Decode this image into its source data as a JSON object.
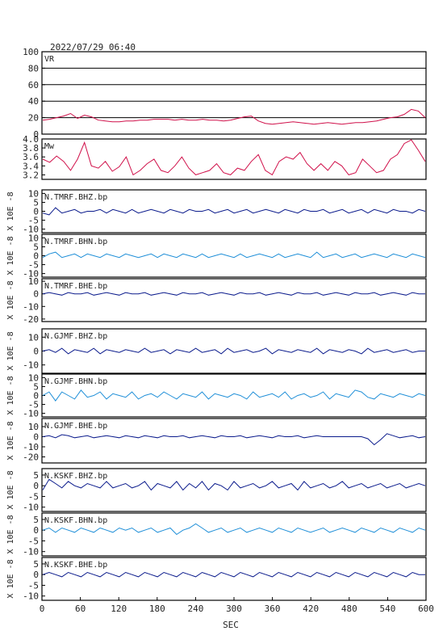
{
  "header": {
    "datetime": "2022/07/29  06:40"
  },
  "colors": {
    "frame": "#000000",
    "vr": "#d0104a",
    "mw": "#d0104a",
    "dark": "#0b1b8c",
    "light": "#1f8fd8"
  },
  "chart_data": [
    {
      "type": "line",
      "title": "VR",
      "ylim": [
        0,
        100
      ],
      "yticks": [
        "0",
        "20",
        "40",
        "60",
        "80",
        "100"
      ],
      "gridlines": [
        20,
        40,
        60,
        80
      ],
      "series": [
        {
          "values": [
            17,
            18,
            20,
            22,
            25,
            19,
            23,
            21,
            17,
            16,
            15,
            15,
            16,
            16,
            17,
            17,
            18,
            18,
            18,
            17,
            18,
            17,
            17,
            18,
            17,
            17,
            16,
            17,
            19,
            21,
            22,
            16,
            13,
            12,
            13,
            14,
            15,
            14,
            13,
            12,
            13,
            14,
            13,
            12,
            13,
            14,
            14,
            15,
            16,
            18,
            20,
            21,
            24,
            30,
            28,
            20
          ]
        }
      ]
    },
    {
      "type": "line",
      "title": "Mw",
      "ylim": [
        3.1,
        4.0
      ],
      "yticks": [
        "3.2",
        "3.4",
        "3.6",
        "3.8",
        "4.0"
      ],
      "gridlines": [],
      "series": [
        {
          "values": [
            3.55,
            3.48,
            3.62,
            3.5,
            3.3,
            3.55,
            3.92,
            3.4,
            3.35,
            3.5,
            3.28,
            3.38,
            3.6,
            3.2,
            3.3,
            3.45,
            3.55,
            3.3,
            3.25,
            3.4,
            3.6,
            3.35,
            3.2,
            3.25,
            3.3,
            3.45,
            3.25,
            3.2,
            3.35,
            3.3,
            3.5,
            3.65,
            3.3,
            3.2,
            3.5,
            3.6,
            3.55,
            3.7,
            3.45,
            3.3,
            3.45,
            3.3,
            3.5,
            3.4,
            3.2,
            3.25,
            3.55,
            3.4,
            3.25,
            3.3,
            3.55,
            3.65,
            3.9,
            3.98,
            3.75,
            3.5
          ]
        }
      ]
    },
    {
      "type": "line",
      "title": "N.TMRF.BHZ.bp",
      "ylabel": "X 10E -8",
      "ylim": [
        -12,
        12
      ],
      "yticks": [
        "-10",
        "-5",
        "0",
        "5",
        "10"
      ],
      "color": "dark",
      "series": [
        {
          "values": [
            -1,
            -2,
            2,
            -1,
            0,
            1,
            -1,
            0,
            0,
            1,
            -1,
            1,
            0,
            -1,
            1,
            -1,
            0,
            1,
            0,
            -1,
            1,
            0,
            -1,
            1,
            0,
            0,
            1,
            -1,
            0,
            1,
            -1,
            0,
            1,
            -1,
            0,
            1,
            0,
            -1,
            1,
            0,
            -1,
            1,
            0,
            0,
            1,
            -1,
            0,
            1,
            -1,
            0,
            1,
            -1,
            1,
            0,
            -1,
            1,
            0,
            0,
            -1,
            1,
            0
          ]
        }
      ]
    },
    {
      "type": "line",
      "title": "N.TMRF.BHN.bp",
      "ylabel": "X 10E -8",
      "ylim": [
        -12,
        12
      ],
      "yticks": [
        "-10",
        "-5",
        "0",
        "5",
        "10"
      ],
      "color": "light",
      "series": [
        {
          "values": [
            -1,
            1,
            2,
            -1,
            0,
            1,
            -1,
            1,
            0,
            -1,
            1,
            0,
            -1,
            1,
            0,
            -1,
            0,
            1,
            -1,
            1,
            0,
            -1,
            1,
            0,
            -1,
            1,
            -1,
            0,
            1,
            0,
            -1,
            1,
            -1,
            0,
            1,
            0,
            -1,
            1,
            -1,
            0,
            1,
            0,
            -1,
            2,
            -1,
            0,
            1,
            -1,
            0,
            1,
            -1,
            0,
            1,
            0,
            -1,
            1,
            0,
            -1,
            1,
            0,
            -1
          ]
        }
      ]
    },
    {
      "type": "line",
      "title": "N.TMRF.BHE.bp",
      "ylabel": "X 10E -8",
      "ylim": [
        -22,
        12
      ],
      "yticks": [
        "-20",
        "-10",
        "0",
        "10"
      ],
      "color": "dark",
      "series": [
        {
          "values": [
            0,
            1,
            0,
            -1,
            1,
            0,
            0,
            1,
            -1,
            0,
            1,
            0,
            -1,
            1,
            0,
            0,
            1,
            -1,
            0,
            1,
            0,
            -1,
            1,
            0,
            0,
            1,
            -1,
            0,
            1,
            0,
            -1,
            1,
            0,
            0,
            1,
            -1,
            0,
            1,
            0,
            -1,
            1,
            0,
            0,
            1,
            -1,
            0,
            1,
            0,
            -1,
            1,
            0,
            0,
            1,
            -1,
            0,
            1,
            0,
            -1,
            1,
            0,
            0
          ]
        }
      ]
    },
    {
      "type": "line",
      "title": "N.GJMF.BHZ.bp",
      "ylabel": "X 10E -8",
      "ylim": [
        -16,
        16
      ],
      "yticks": [
        "-10",
        "0",
        "10"
      ],
      "color": "dark",
      "series": [
        {
          "values": [
            0,
            1,
            -1,
            2,
            -2,
            1,
            0,
            -1,
            2,
            -2,
            1,
            0,
            -1,
            1,
            0,
            -1,
            2,
            -1,
            0,
            1,
            -2,
            1,
            0,
            -1,
            2,
            -1,
            0,
            1,
            -2,
            2,
            -1,
            0,
            1,
            -1,
            0,
            2,
            -2,
            1,
            0,
            -1,
            1,
            0,
            -1,
            2,
            -2,
            1,
            0,
            -1,
            1,
            0,
            -2,
            2,
            -1,
            0,
            1,
            -1,
            0,
            1,
            -1,
            0,
            0
          ]
        }
      ]
    },
    {
      "type": "line",
      "title": "N.GJMF.BHN.bp",
      "ylabel": "X 10E -8",
      "ylim": [
        -12,
        12
      ],
      "yticks": [
        "-10",
        "-5",
        "0",
        "5",
        "10"
      ],
      "color": "light",
      "series": [
        {
          "values": [
            0,
            2,
            -3,
            2,
            0,
            -2,
            3,
            -1,
            0,
            2,
            -2,
            1,
            0,
            -1,
            2,
            -2,
            0,
            1,
            -1,
            2,
            0,
            -2,
            1,
            0,
            -1,
            2,
            -2,
            1,
            0,
            -1,
            1,
            0,
            -2,
            2,
            -1,
            0,
            1,
            -1,
            2,
            -2,
            0,
            1,
            -1,
            0,
            2,
            -2,
            1,
            0,
            -1,
            3,
            2,
            -1,
            -2,
            1,
            0,
            -1,
            1,
            0,
            -1,
            1,
            0
          ]
        }
      ]
    },
    {
      "type": "line",
      "title": "N.GJMF.BHE.bp",
      "ylabel": "X 10E -8",
      "ylim": [
        -26,
        18
      ],
      "yticks": [
        "-20",
        "-10",
        "0",
        "10"
      ],
      "color": "dark",
      "series": [
        {
          "values": [
            0,
            1,
            -1,
            2,
            1,
            -1,
            0,
            1,
            -1,
            0,
            1,
            0,
            -1,
            1,
            0,
            -1,
            1,
            0,
            -1,
            1,
            0,
            0,
            1,
            -1,
            0,
            1,
            0,
            -1,
            1,
            0,
            0,
            1,
            -1,
            0,
            1,
            0,
            -1,
            1,
            0,
            0,
            1,
            -1,
            0,
            1,
            0,
            0,
            0,
            0,
            0,
            0,
            0,
            -2,
            -8,
            -3,
            3,
            1,
            -1,
            0,
            1,
            -1,
            0
          ]
        }
      ]
    },
    {
      "type": "line",
      "title": "N.KSKF.BHZ.bp",
      "ylabel": "X 10E -8",
      "ylim": [
        -12,
        8
      ],
      "yticks": [
        "-10",
        "-5",
        "0",
        "5"
      ],
      "color": "dark",
      "series": [
        {
          "values": [
            -2,
            3,
            1,
            -1,
            2,
            0,
            -1,
            1,
            0,
            -1,
            2,
            -1,
            0,
            1,
            -1,
            0,
            2,
            -2,
            1,
            0,
            -1,
            2,
            -2,
            1,
            -1,
            2,
            -2,
            1,
            0,
            -2,
            2,
            -1,
            0,
            1,
            -1,
            0,
            2,
            -1,
            0,
            1,
            -2,
            2,
            -1,
            0,
            1,
            -1,
            0,
            2,
            -1,
            0,
            1,
            -1,
            0,
            1,
            -1,
            0,
            1,
            -1,
            0,
            1,
            0
          ]
        }
      ]
    },
    {
      "type": "line",
      "title": "N.KSKF.BHN.bp",
      "ylabel": "X 10E -8",
      "ylim": [
        -12,
        8
      ],
      "yticks": [
        "-10",
        "-5",
        "0",
        "5"
      ],
      "color": "light",
      "series": [
        {
          "values": [
            0,
            1,
            -1,
            1,
            0,
            -1,
            1,
            0,
            -1,
            1,
            0,
            -1,
            1,
            0,
            1,
            -1,
            0,
            1,
            -1,
            0,
            1,
            -2,
            0,
            1,
            3,
            1,
            -1,
            0,
            1,
            -1,
            0,
            1,
            -1,
            0,
            1,
            0,
            -1,
            1,
            0,
            -1,
            1,
            0,
            -1,
            0,
            1,
            -1,
            0,
            1,
            0,
            -1,
            1,
            0,
            -1,
            1,
            0,
            -1,
            1,
            0,
            -1,
            1,
            0
          ]
        }
      ]
    },
    {
      "type": "line",
      "title": "N.KSKF.BHE.bp",
      "ylabel": "X 10E -8",
      "ylim": [
        -12,
        8
      ],
      "yticks": [
        "-10",
        "-5",
        "0",
        "5"
      ],
      "color": "dark",
      "series": [
        {
          "values": [
            0,
            1,
            0,
            -1,
            1,
            0,
            -1,
            1,
            0,
            -1,
            1,
            0,
            -1,
            1,
            0,
            -1,
            1,
            0,
            -1,
            1,
            0,
            -1,
            1,
            0,
            -1,
            1,
            0,
            -1,
            1,
            0,
            -1,
            1,
            0,
            -1,
            1,
            0,
            -1,
            1,
            0,
            -1,
            1,
            0,
            -1,
            1,
            0,
            -1,
            1,
            0,
            -1,
            1,
            0,
            -1,
            1,
            0,
            -1,
            1,
            0,
            -1,
            1,
            0,
            0
          ]
        }
      ]
    }
  ],
  "xaxis": {
    "xlabel": "SEC",
    "xlim": [
      0,
      600
    ],
    "ticks": [
      "0",
      "60",
      "120",
      "180",
      "240",
      "300",
      "360",
      "420",
      "480",
      "540",
      "600"
    ]
  }
}
